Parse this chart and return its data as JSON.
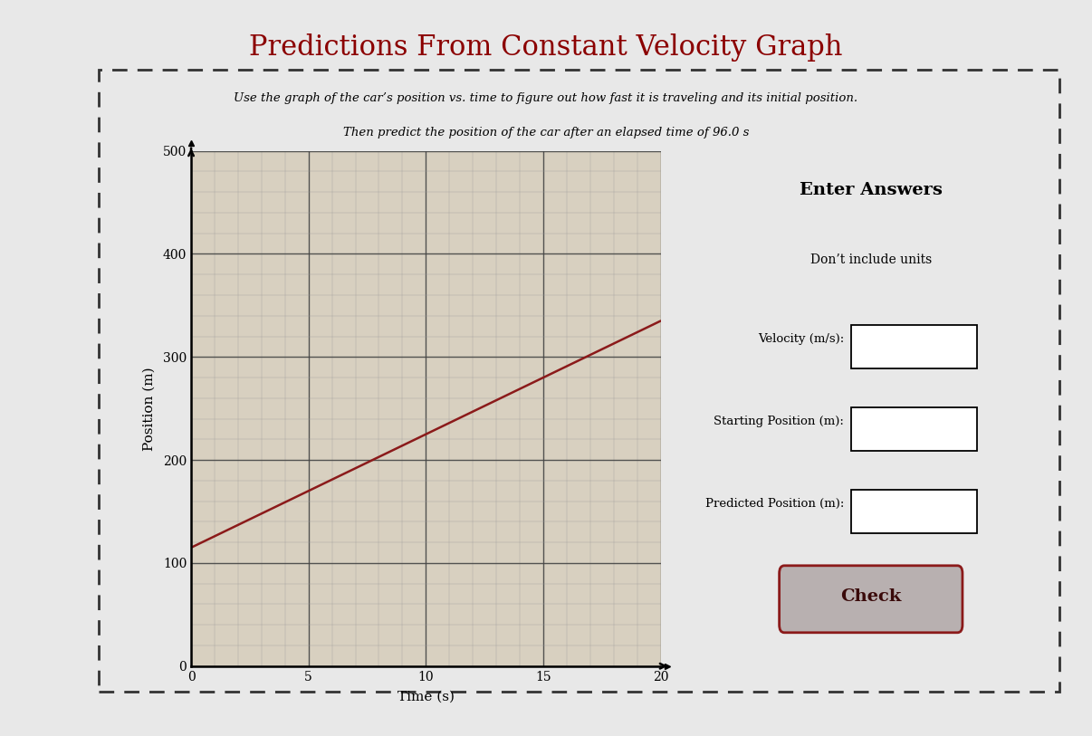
{
  "title": "Predictions From Constant Velocity Graph",
  "title_fontsize": 22,
  "subtitle1": "Use the graph of the car’s position vs. time to figure out how fast it is traveling and its initial position.",
  "subtitle2": "Then predict the position of the car after an elapsed time of 96.0 s",
  "xlabel": "Time (s)",
  "ylabel": "Position (m)",
  "xlim": [
    0,
    20
  ],
  "ylim": [
    0,
    500
  ],
  "xticks": [
    0,
    5,
    10,
    15,
    20
  ],
  "yticks": [
    0,
    100,
    200,
    300,
    400,
    500
  ],
  "line_x": [
    0,
    20
  ],
  "line_y": [
    115,
    335
  ],
  "line_color": "#8B1A1A",
  "grid_major_color": "#444444",
  "grid_minor_color": "#999999",
  "bg_color": "#e8e8e8",
  "plot_bg_color": "#d8d0c0",
  "panel_bg": "#dcdcdc",
  "enter_answers_text": "Enter Answers",
  "dont_include_text": "Don’t include units",
  "velocity_label": "Velocity (m/s):",
  "starting_pos_label": "Starting Position (m):",
  "predicted_pos_label": "Predicted Position (m):",
  "check_text": "Check",
  "dashed_border_color": "#333333",
  "title_color": "#8B0000",
  "text_color": "#3a0a0a",
  "subtitle_color": "#000000"
}
